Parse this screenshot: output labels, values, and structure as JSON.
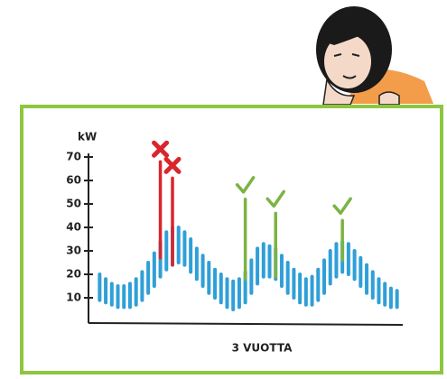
{
  "chart_data": {
    "type": "range-bar",
    "y_label": "kW",
    "x_label": "3 VUOTTA",
    "ylim": [
      0,
      70
    ],
    "yticks": [
      10,
      20,
      30,
      40,
      50,
      60,
      70
    ],
    "categories": [
      null,
      null,
      null,
      null,
      null,
      null,
      null,
      null,
      null,
      null,
      null,
      null,
      null,
      null,
      null,
      null,
      null,
      null,
      null,
      null,
      null,
      null,
      null,
      null,
      null,
      null,
      null,
      null,
      null,
      null,
      null,
      null,
      null,
      null,
      null,
      null,
      null,
      null,
      null,
      null,
      null,
      null,
      null,
      null,
      null,
      null,
      null,
      null,
      null,
      null
    ],
    "series": [
      {
        "color": "#2f9fd8",
        "low": [
          9,
          8,
          7,
          6,
          6,
          6,
          7,
          9,
          12,
          15,
          19,
          22,
          24,
          25,
          24,
          21,
          18,
          15,
          12,
          10,
          8,
          6,
          5,
          6,
          8,
          12,
          16,
          19,
          19,
          18,
          15,
          12,
          10,
          8,
          7,
          7,
          9,
          12,
          16,
          19,
          21,
          20,
          18,
          15,
          12,
          10,
          8,
          7,
          6,
          6
        ],
        "values": [
          20,
          18,
          16,
          15,
          15,
          16,
          18,
          21,
          25,
          29,
          34,
          38,
          40,
          40,
          38,
          35,
          31,
          28,
          25,
          22,
          20,
          18,
          17,
          18,
          21,
          26,
          31,
          33,
          32,
          31,
          28,
          25,
          22,
          20,
          18,
          19,
          22,
          26,
          30,
          33,
          34,
          33,
          30,
          27,
          24,
          21,
          18,
          16,
          14,
          13
        ]
      },
      {
        "color": "#d9262c",
        "mark": "cross",
        "low": [
          null,
          null,
          null,
          null,
          null,
          null,
          null,
          null,
          null,
          null,
          27,
          null,
          24,
          null,
          null,
          null,
          null,
          null,
          null,
          null,
          null,
          null,
          null,
          null,
          null,
          null,
          null,
          null,
          null,
          null,
          null,
          null,
          null,
          null,
          null,
          null,
          null,
          null,
          null,
          null,
          null,
          null,
          null,
          null,
          null,
          null,
          null,
          null,
          null,
          null
        ],
        "values": [
          null,
          null,
          null,
          null,
          null,
          null,
          null,
          null,
          null,
          null,
          68,
          null,
          61,
          null,
          null,
          null,
          null,
          null,
          null,
          null,
          null,
          null,
          null,
          null,
          null,
          null,
          null,
          null,
          null,
          null,
          null,
          null,
          null,
          null,
          null,
          null,
          null,
          null,
          null,
          null,
          null,
          null,
          null,
          null,
          null,
          null,
          null,
          null,
          null,
          null
        ]
      },
      {
        "color": "#7cb342",
        "mark": "check",
        "low": [
          null,
          null,
          null,
          null,
          null,
          null,
          null,
          null,
          null,
          null,
          null,
          null,
          null,
          null,
          null,
          null,
          null,
          null,
          null,
          null,
          null,
          null,
          null,
          null,
          18,
          null,
          null,
          null,
          null,
          19,
          null,
          null,
          null,
          null,
          null,
          null,
          null,
          null,
          null,
          null,
          26,
          null,
          null,
          null,
          null,
          null,
          null,
          null,
          null,
          null
        ],
        "values": [
          null,
          null,
          null,
          null,
          null,
          null,
          null,
          null,
          null,
          null,
          null,
          null,
          null,
          null,
          null,
          null,
          null,
          null,
          null,
          null,
          null,
          null,
          null,
          null,
          52,
          null,
          null,
          null,
          null,
          46,
          null,
          null,
          null,
          null,
          null,
          null,
          null,
          null,
          null,
          null,
          43,
          null,
          null,
          null,
          null,
          null,
          null,
          null,
          null,
          null
        ]
      }
    ]
  }
}
